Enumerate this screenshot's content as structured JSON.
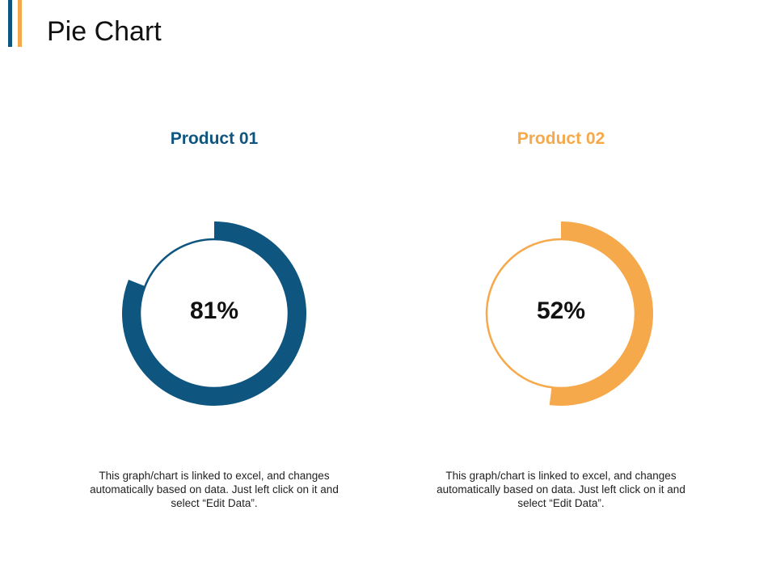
{
  "slide": {
    "title": "Pie Chart"
  },
  "colors": {
    "accent_left": "#0e5580",
    "accent_right": "#f6a94b",
    "product1": "#0e5580",
    "product2": "#f6a94b"
  },
  "chart_data": [
    {
      "type": "pie",
      "title": "Product 01",
      "value_percent": 81,
      "label": "81%",
      "note": "This graph/chart is linked to excel, and changes automatically based on data. Just left click on it and select “Edit Data”."
    },
    {
      "type": "pie",
      "title": "Product 02",
      "value_percent": 52,
      "label": "52%",
      "note": "This graph/chart is linked to excel, and changes automatically based on data. Just left click on it and select “Edit Data”."
    }
  ]
}
